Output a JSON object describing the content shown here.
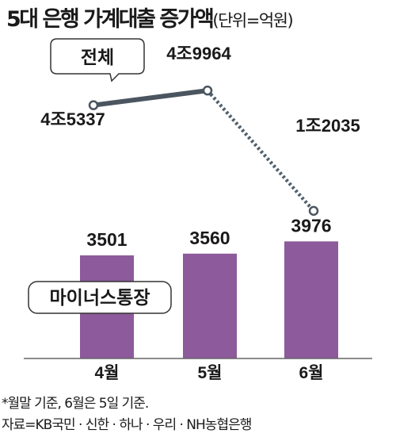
{
  "title": "5대 은행 가계대출 증가액",
  "unit": "(단위=억원)",
  "chart_data": {
    "type": "bar+line",
    "categories": [
      "4월",
      "5월",
      "6월"
    ],
    "series": [
      {
        "name": "전체",
        "type": "line",
        "values": [
          45337,
          49964,
          12035
        ],
        "labels": [
          "4조5337",
          "4조9964",
          "1조2035"
        ]
      },
      {
        "name": "마이너스통장",
        "type": "bar",
        "values": [
          3501,
          3560,
          3976
        ],
        "labels": [
          "3501",
          "3560",
          "3976"
        ]
      }
    ],
    "colors": {
      "bar": "#8d5a9b",
      "line": "#4b5560"
    }
  },
  "footnotes": [
    "*월말 기준, 6월은 5일 기준.",
    "자료=KB국민 · 신한 · 하나 · 우리 · NH농협은행"
  ]
}
